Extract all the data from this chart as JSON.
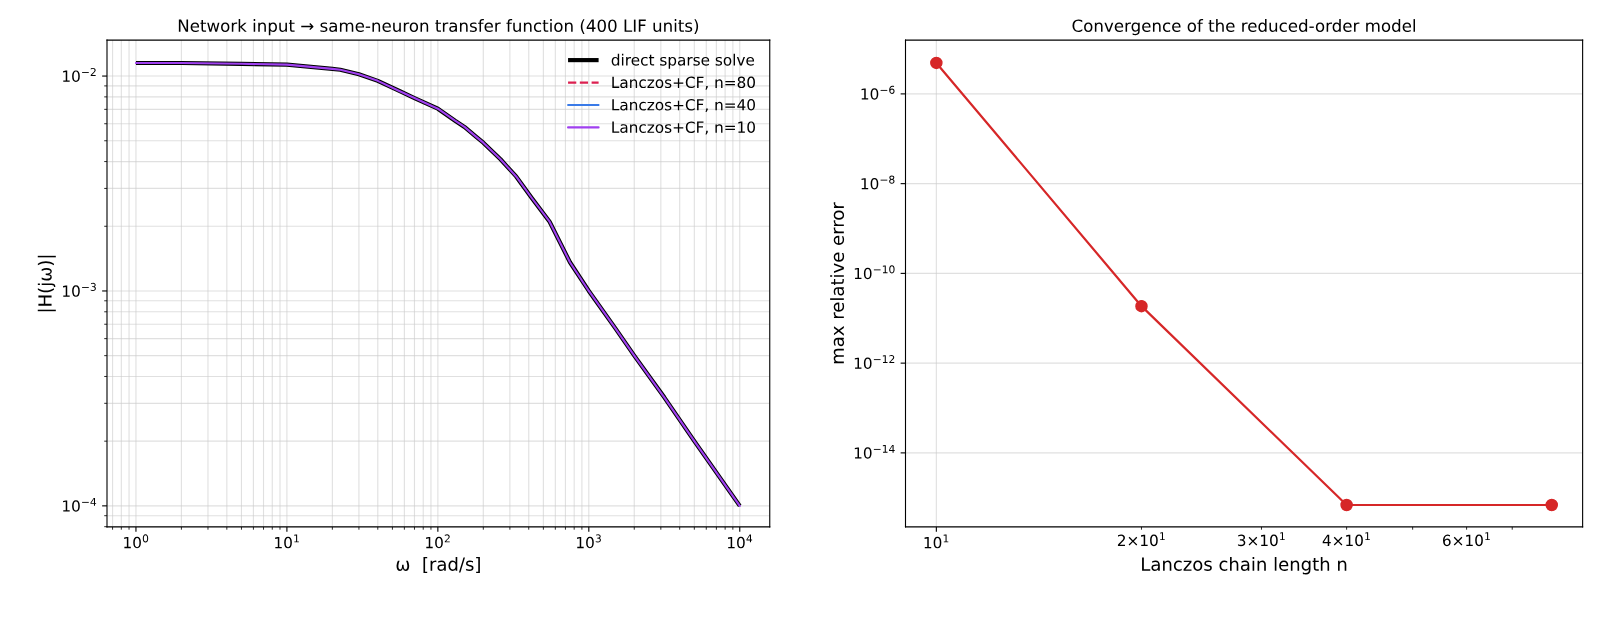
{
  "chart_data": [
    {
      "type": "line",
      "title": "Network input → same-neuron transfer function (400 LIF units)",
      "xlabel": "ω  [rad/s]",
      "ylabel": "|H(jω)|",
      "log": "xy",
      "grid": true,
      "legend": "top right",
      "x": [
        1,
        2,
        5,
        10,
        20,
        22.6,
        30,
        40,
        56,
        70,
        100,
        130,
        150,
        178,
        200,
        260,
        330,
        420,
        550,
        750,
        1000,
        1500,
        2000,
        3162,
        5000,
        10000
      ],
      "xlim": [
        0.643,
        15800
      ],
      "ylim": [
        7.98e-05,
        0.0147
      ],
      "xticks": [
        {
          "value": 1,
          "label": "10$^{0}$"
        },
        {
          "value": 10,
          "label": "10$^{1}$"
        },
        {
          "value": 100,
          "label": "10$^{2}$"
        },
        {
          "value": 1000,
          "label": "10$^{3}$"
        },
        {
          "value": 10000,
          "label": "10$^{4}$"
        }
      ],
      "yticks": [
        {
          "value": 0.0001,
          "label": "10$^{−4}$"
        },
        {
          "value": 0.001,
          "label": "10$^{−3}$"
        },
        {
          "value": 0.01,
          "label": "10$^{−2}$"
        }
      ],
      "series": [
        {
          "name": "direct sparse solve",
          "color": "#000000",
          "line_style": "solid",
          "values": [
            0.0115,
            0.0115,
            0.0114,
            0.0113,
            0.0108,
            0.0107,
            0.0102,
            0.0095,
            0.0085,
            0.0079,
            0.00705,
            0.0062,
            0.0058,
            0.00524,
            0.0049,
            0.0041,
            0.00341,
            0.0027,
            0.0021,
            0.00136,
            0.001,
            0.00067,
            0.0005,
            0.00032,
            0.0002,
            0.0001
          ]
        },
        {
          "name": "Lanczos+CF, n=80",
          "color": "#dc2050",
          "line_style": "dashed",
          "values": [
            null,
            null,
            null,
            null,
            null,
            null,
            null,
            null,
            null,
            null,
            null,
            null,
            null,
            null,
            null,
            null,
            null,
            null,
            null,
            null,
            null,
            null,
            null,
            null,
            null,
            null
          ]
        },
        {
          "name": "Lanczos+CF, n=40",
          "color": "#3a7be8",
          "line_style": "solid",
          "values": [
            null,
            null,
            null,
            null,
            null,
            null,
            null,
            null,
            null,
            null,
            null,
            null,
            null,
            null,
            null,
            null,
            null,
            null,
            null,
            null,
            null,
            null,
            null,
            null,
            null,
            null
          ]
        },
        {
          "name": "Lanczos+CF, n=10",
          "color": "#a040f0",
          "line_style": "solid",
          "values": [
            0.0115,
            0.0115,
            0.0114,
            0.0113,
            0.0108,
            0.0107,
            0.0102,
            0.0095,
            0.0085,
            0.0079,
            0.00705,
            0.0062,
            0.0058,
            0.00524,
            0.0049,
            0.0041,
            0.00341,
            0.0027,
            0.0021,
            0.00136,
            0.001,
            0.00067,
            0.0005,
            0.00032,
            0.0002,
            0.0001
          ]
        }
      ]
    },
    {
      "type": "line",
      "title": "Convergence of the reduced-order model",
      "xlabel": "Lanczos chain length n",
      "ylabel": "max relative error",
      "log": "xy",
      "grid": true,
      "marker": "circle",
      "x": [
        10,
        20,
        40,
        80
      ],
      "xlim": [
        9.01,
        88.8
      ],
      "ylim": [
        2.24e-16,
        1.58e-05
      ],
      "xticks": [
        {
          "value": 10,
          "label": "10$^{1}$"
        },
        {
          "value": 20,
          "label": "2×10$^{1}$"
        },
        {
          "value": 30,
          "label": "3×10$^{1}$"
        },
        {
          "value": 40,
          "label": "4×10$^{1}$"
        },
        {
          "value": 50,
          "label": null
        },
        {
          "value": 60,
          "label": "6×10$^{1}$"
        },
        {
          "value": 70,
          "label": null
        }
      ],
      "yticks": [
        {
          "value": 1e-14,
          "label": "10$^{−14}$"
        },
        {
          "value": 1e-12,
          "label": "10$^{−12}$"
        },
        {
          "value": 1e-10,
          "label": "10$^{−10}$"
        },
        {
          "value": 1e-08,
          "label": "10$^{−8}$"
        },
        {
          "value": 1e-06,
          "label": "10$^{−6}$"
        }
      ],
      "series": [
        {
          "color": "#d62728",
          "values": [
            4.9e-06,
            1.86e-11,
            6.9e-16,
            6.9e-16
          ]
        }
      ]
    }
  ]
}
